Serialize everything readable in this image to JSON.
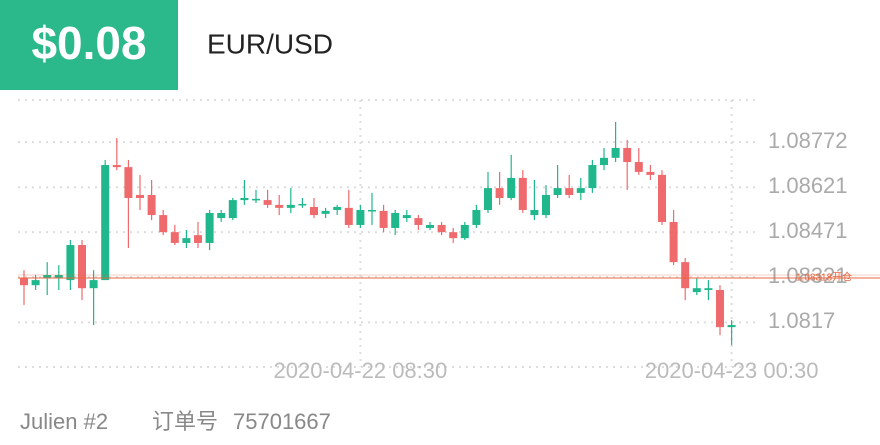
{
  "header": {
    "amount": "$0.08",
    "symbol": "EUR/USD"
  },
  "chart_data": {
    "type": "candlestick",
    "categories": [
      null,
      null,
      null,
      null,
      null,
      null,
      null,
      null,
      null,
      null,
      null,
      null,
      null,
      null,
      null,
      null,
      null,
      null,
      null,
      null,
      null,
      null,
      null,
      null,
      null,
      null,
      null,
      null,
      null,
      "2020-04-22 08:30",
      null,
      null,
      null,
      null,
      null,
      null,
      null,
      null,
      null,
      null,
      null,
      null,
      null,
      null,
      null,
      null,
      null,
      null,
      null,
      null,
      null,
      null,
      null,
      null,
      null,
      null,
      null,
      null,
      null,
      null,
      null,
      "2020-04-23 00:30"
    ],
    "open": [
      1.08318,
      1.08294,
      1.08318,
      1.08318,
      1.08311,
      1.08428,
      1.08284,
      1.08311,
      1.08695,
      1.08688,
      1.08595,
      1.08595,
      1.08528,
      1.08471,
      1.08435,
      1.08461,
      1.08435,
      1.08518,
      1.08518,
      1.08578,
      1.08578,
      1.08578,
      1.08562,
      1.08552,
      1.08562,
      1.08555,
      1.08532,
      1.08545,
      1.08552,
      1.08495,
      1.08542,
      1.08542,
      1.08485,
      1.08518,
      1.08518,
      1.08485,
      1.08495,
      1.08471,
      1.08451,
      1.08495,
      1.08545,
      1.08618,
      1.08585,
      1.08652,
      1.08528,
      1.08528,
      1.08595,
      1.08618,
      1.08602,
      1.08618,
      1.08695,
      1.08719,
      1.08752,
      1.08705,
      1.08672,
      1.08662,
      1.08505,
      1.08371,
      1.08271,
      1.08278,
      1.08278,
      1.08154
    ],
    "high": [
      1.08344,
      1.08328,
      1.08371,
      1.08361,
      1.08445,
      1.08445,
      1.08344,
      1.08712,
      1.08785,
      1.08712,
      1.08662,
      1.08645,
      1.08545,
      1.08495,
      1.08478,
      1.08505,
      1.08545,
      1.08545,
      1.08585,
      1.08645,
      1.08612,
      1.08612,
      1.08595,
      1.08618,
      1.08585,
      1.08585,
      1.08552,
      1.08562,
      1.08612,
      1.08562,
      1.08602,
      1.08562,
      1.08545,
      1.08545,
      1.08528,
      1.08505,
      1.08505,
      1.08485,
      1.08505,
      1.08562,
      1.08672,
      1.08672,
      1.08729,
      1.08678,
      1.08645,
      1.08628,
      1.08695,
      1.08662,
      1.08652,
      1.08712,
      1.08752,
      1.08839,
      1.08779,
      1.08752,
      1.08695,
      1.08678,
      1.08545,
      1.08385,
      1.08318,
      1.08311,
      1.08294,
      1.08177
    ],
    "low": [
      1.08228,
      1.08278,
      1.08261,
      1.08278,
      1.08278,
      1.08244,
      1.08161,
      1.08311,
      1.08678,
      1.08418,
      1.08545,
      1.08511,
      1.08461,
      1.08428,
      1.08418,
      1.08418,
      1.08411,
      1.08505,
      1.08511,
      1.08562,
      1.08568,
      1.08552,
      1.08528,
      1.08535,
      1.08552,
      1.08518,
      1.08518,
      1.08528,
      1.08485,
      1.08485,
      1.08495,
      1.08471,
      1.08461,
      1.08505,
      1.08478,
      1.08478,
      1.08461,
      1.08435,
      1.08445,
      1.08485,
      1.08535,
      1.08562,
      1.08578,
      1.08535,
      1.08511,
      1.08518,
      1.08585,
      1.08585,
      1.08578,
      1.08602,
      1.08678,
      1.08705,
      1.08612,
      1.08662,
      1.08645,
      1.08495,
      1.08361,
      1.08244,
      1.08261,
      1.08244,
      1.08127,
      1.08094
    ],
    "close": [
      1.08294,
      1.08311,
      1.08328,
      1.08328,
      1.08428,
      1.08284,
      1.08311,
      1.08695,
      1.08688,
      1.08585,
      1.08585,
      1.08528,
      1.08471,
      1.08435,
      1.08451,
      1.08435,
      1.08535,
      1.08535,
      1.08578,
      1.08585,
      1.08582,
      1.08562,
      1.08552,
      1.08562,
      1.08565,
      1.08528,
      1.08542,
      1.08555,
      1.08495,
      1.08545,
      1.08545,
      1.08485,
      1.08535,
      1.08528,
      1.08495,
      1.08495,
      1.08471,
      1.08451,
      1.08495,
      1.08545,
      1.08618,
      1.08585,
      1.08652,
      1.08545,
      1.08545,
      1.08595,
      1.08618,
      1.08595,
      1.08618,
      1.08695,
      1.08719,
      1.08752,
      1.08705,
      1.08672,
      1.08662,
      1.08505,
      1.08371,
      1.08284,
      1.08284,
      1.08284,
      1.08154,
      1.08161
    ],
    "up_color": "#21b78c",
    "down_color": "#ee6a6c",
    "ylim": [
      1.08021,
      1.08912
    ],
    "yticks": [
      1.08772,
      1.08621,
      1.08471,
      1.08321,
      1.0817
    ],
    "ref_line": {
      "value": 1.08318,
      "label": "1.08318开仓",
      "color": "#e8653f"
    },
    "grid": true
  },
  "footer": {
    "user": "Julien #2",
    "order_label": "订单号",
    "order_id": "75701667"
  }
}
